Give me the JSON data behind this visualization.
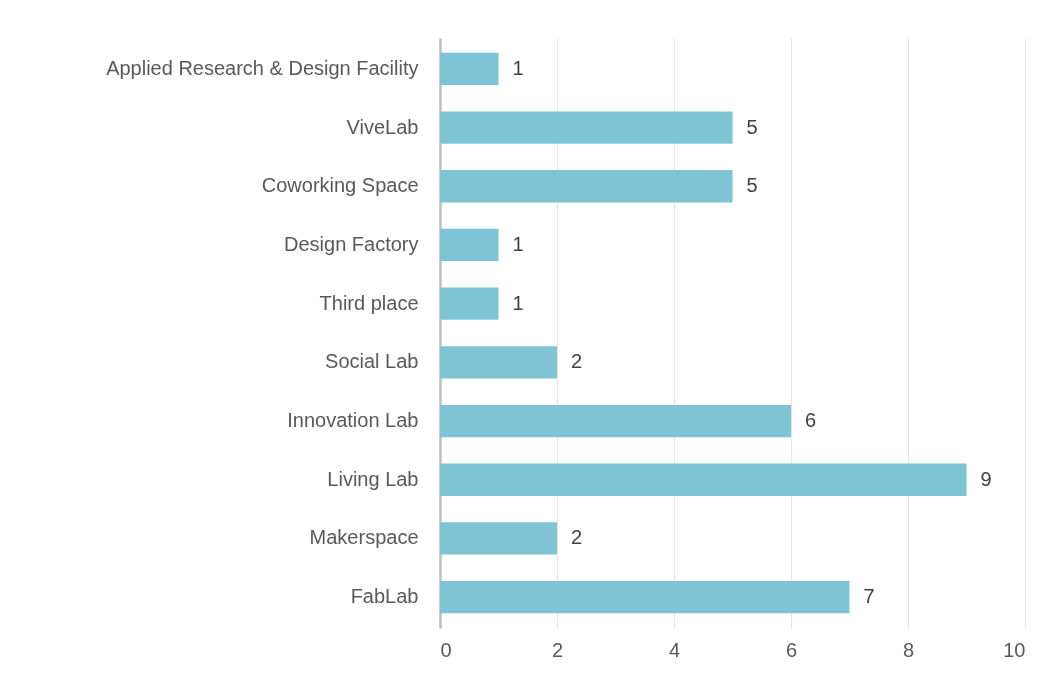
{
  "chart_data": {
    "type": "bar",
    "orientation": "horizontal",
    "categories": [
      "Applied Research & Design Facility",
      "ViveLab",
      "Coworking Space",
      "Design Factory",
      "Third place",
      "Social Lab",
      "Innovation Lab",
      "Living Lab",
      "Makerspace",
      "FabLab"
    ],
    "values": [
      1,
      5,
      5,
      1,
      1,
      2,
      6,
      9,
      2,
      7
    ],
    "color": "#7fc4d4",
    "xlim": [
      0,
      10
    ],
    "xticks": [
      0,
      2,
      4,
      6,
      8,
      10
    ],
    "grid": "x",
    "data_labels": true
  }
}
